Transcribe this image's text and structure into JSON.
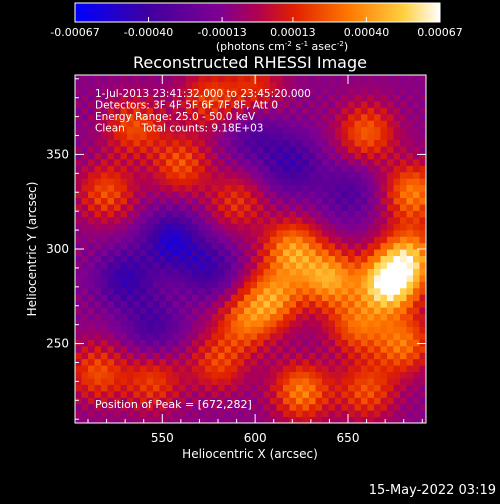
{
  "chart_data": {
    "type": "heatmap",
    "title": "Reconstructed RHESSI Image",
    "xlabel": "Heliocentric X (arcsec)",
    "ylabel": "Heliocentric Y (arcsec)",
    "xlim": [
      503,
      692
    ],
    "ylim": [
      208,
      392
    ],
    "x_ticks": [
      550,
      600,
      650
    ],
    "y_ticks": [
      250,
      300,
      350
    ],
    "colorbar": {
      "min": -0.00067,
      "max": 0.00067,
      "ticks": [
        -0.00067,
        -0.0004,
        -0.00013,
        0.00013,
        0.0004,
        0.00067
      ],
      "tick_labels": [
        "-0.00067",
        "-0.00040",
        "-0.00013",
        "0.00013",
        "0.00040",
        "0.00067"
      ],
      "unit_label": "(photons cm-2 s-1 asec-2)"
    },
    "annotations": [
      "1-Jul-2013 23:41:32.000 to 23:45:20.000",
      "Detectors: 3F 4F 5F 6F 7F 8F, Att 0",
      "Energy Range: 25.0 - 50.0 keV",
      "Clean     Total counts: 9.18E+03"
    ],
    "peak_label": "Position of Peak = [672,282]",
    "peak": [
      672,
      282
    ],
    "sources": [
      {
        "x": 672,
        "y": 282,
        "amp": 1.0
      },
      {
        "x": 683,
        "y": 296,
        "amp": 0.7
      },
      {
        "x": 640,
        "y": 285,
        "amp": 0.7
      },
      {
        "x": 620,
        "y": 300,
        "amp": 0.65
      },
      {
        "x": 610,
        "y": 275,
        "amp": 0.6
      },
      {
        "x": 685,
        "y": 330,
        "amp": 0.6
      },
      {
        "x": 680,
        "y": 250,
        "amp": 0.55
      },
      {
        "x": 625,
        "y": 225,
        "amp": 0.6
      },
      {
        "x": 595,
        "y": 262,
        "amp": 0.5
      },
      {
        "x": 655,
        "y": 260,
        "amp": 0.5
      },
      {
        "x": 660,
        "y": 362,
        "amp": 0.5
      },
      {
        "x": 535,
        "y": 365,
        "amp": 0.45
      },
      {
        "x": 520,
        "y": 330,
        "amp": 0.45
      },
      {
        "x": 560,
        "y": 345,
        "amp": 0.45
      },
      {
        "x": 575,
        "y": 380,
        "amp": 0.4
      },
      {
        "x": 590,
        "y": 325,
        "amp": 0.35
      },
      {
        "x": 515,
        "y": 235,
        "amp": 0.45
      },
      {
        "x": 545,
        "y": 230,
        "amp": 0.4
      },
      {
        "x": 580,
        "y": 240,
        "amp": 0.4
      },
      {
        "x": 660,
        "y": 225,
        "amp": 0.45
      },
      {
        "x": 600,
        "y": 385,
        "amp": 0.35
      },
      {
        "x": 530,
        "y": 285,
        "amp": -0.45
      },
      {
        "x": 555,
        "y": 305,
        "amp": -0.55
      },
      {
        "x": 575,
        "y": 290,
        "amp": -0.4
      },
      {
        "x": 545,
        "y": 260,
        "amp": -0.35
      },
      {
        "x": 620,
        "y": 345,
        "amp": -0.4
      },
      {
        "x": 600,
        "y": 360,
        "amp": -0.3
      },
      {
        "x": 650,
        "y": 330,
        "amp": -0.3
      }
    ]
  },
  "footer": {
    "timestamp": "15-May-2022 03:19"
  }
}
